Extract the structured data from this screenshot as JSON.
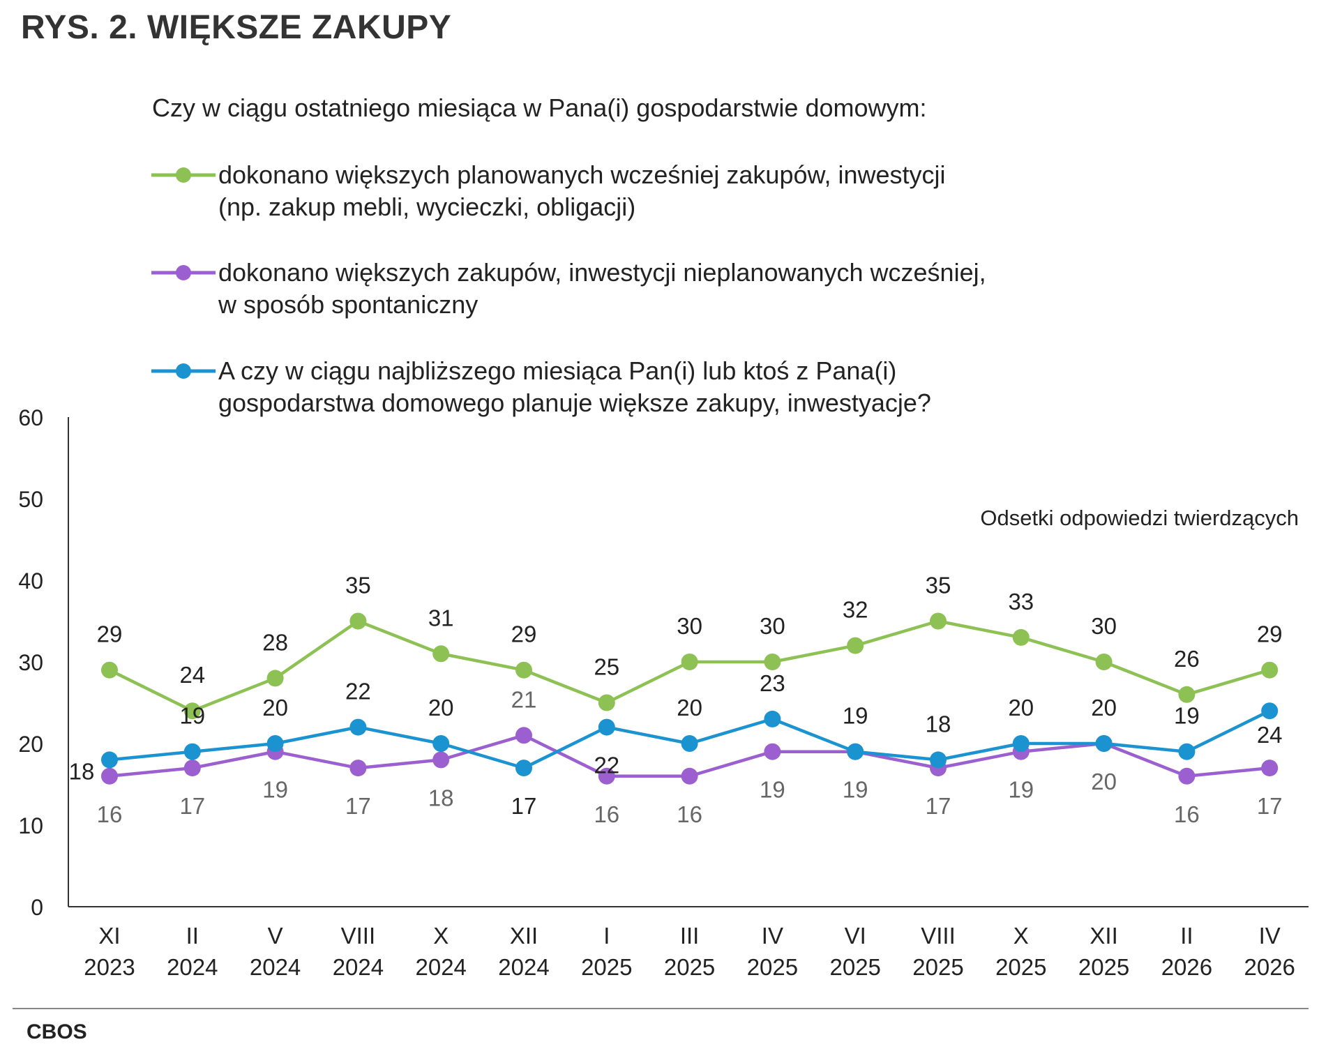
{
  "title": "RYS. 2. WIĘKSZE ZAKUPY",
  "question": "Czy w ciągu ostatniego miesiąca w Pana(i) gospodarstwie domowym:",
  "legend": [
    {
      "line1": "dokonano większych planowanych wcześniej zakupów, inwestycji",
      "line2": "(np. zakup mebli, wycieczki, obligacji)"
    },
    {
      "line1": "dokonano większych zakupów, inwestycji nieplanowanych wcześniej,",
      "line2": "w sposób spontaniczny"
    },
    {
      "line1": "A czy w ciągu najbliższego miesiąca Pan(i) lub ktoś z Pana(i)",
      "line2": "gospodarstwa domowego planuje większe zakupy, inwestyacje?"
    }
  ],
  "source": "CBOS",
  "chart_data": {
    "type": "line",
    "annotation": "Odsetki odpowiedzi twierdzących",
    "ylim": [
      0,
      60
    ],
    "yticks": [
      0,
      10,
      20,
      30,
      40,
      50,
      60
    ],
    "categories": [
      [
        "XI",
        "2023"
      ],
      [
        "II",
        "2024"
      ],
      [
        "V",
        "2024"
      ],
      [
        "VIII",
        "2024"
      ],
      [
        "X",
        "2024"
      ],
      [
        "XII",
        "2024"
      ],
      [
        "I",
        "2025"
      ],
      [
        "III",
        "2025"
      ],
      [
        "IV",
        "2025"
      ],
      [
        "VI",
        "2025"
      ],
      [
        "VIII",
        "2025"
      ],
      [
        "X",
        "2025"
      ],
      [
        "XII",
        "2025"
      ],
      [
        "II",
        "2026"
      ],
      [
        "IV",
        "2026"
      ]
    ],
    "series": [
      {
        "color": "#8dc153",
        "values": [
          29,
          24,
          28,
          35,
          31,
          29,
          25,
          30,
          30,
          32,
          35,
          33,
          30,
          26,
          29
        ]
      },
      {
        "color": "#9b5fd0",
        "values": [
          16,
          17,
          19,
          17,
          18,
          21,
          16,
          16,
          19,
          19,
          17,
          19,
          20,
          16,
          17
        ]
      },
      {
        "color": "#1b93d0",
        "values": [
          18,
          19,
          20,
          22,
          20,
          17,
          22,
          20,
          23,
          19,
          18,
          20,
          20,
          19,
          24
        ]
      }
    ],
    "grid": false
  }
}
